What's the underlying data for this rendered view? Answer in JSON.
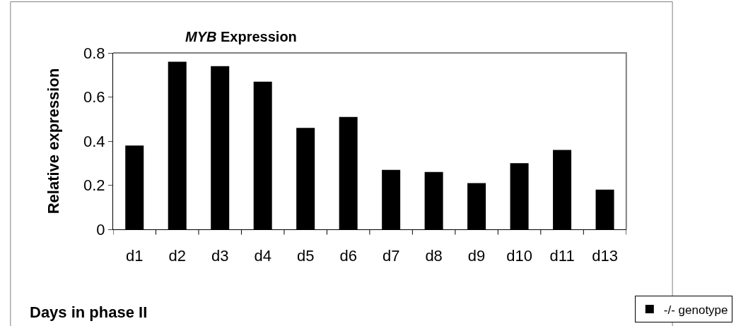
{
  "chart_data": {
    "type": "bar",
    "title": "MYB Expression",
    "xlabel": "Days in phase II",
    "ylabel": "Relative expression",
    "categories": [
      "d1",
      "d2",
      "d3",
      "d4",
      "d5",
      "d6",
      "d7",
      "d8",
      "d9",
      "d10",
      "d11",
      "d13"
    ],
    "series": [
      {
        "name": "-/- genotype",
        "color": "#000000",
        "values": [
          0.38,
          0.76,
          0.74,
          0.67,
          0.46,
          0.51,
          0.27,
          0.26,
          0.21,
          0.3,
          0.36,
          0.18
        ]
      }
    ],
    "ylim": [
      0,
      0.8
    ],
    "yticks": [
      0,
      {
        "value": 0.2,
        "label": "0.2"
      },
      {
        "value": 0.4,
        "label": "0.4"
      },
      {
        "value": 0.6,
        "label": "0.6"
      },
      {
        "value": 0.8,
        "label": "0.8"
      }
    ],
    "legend": "bottom right"
  }
}
